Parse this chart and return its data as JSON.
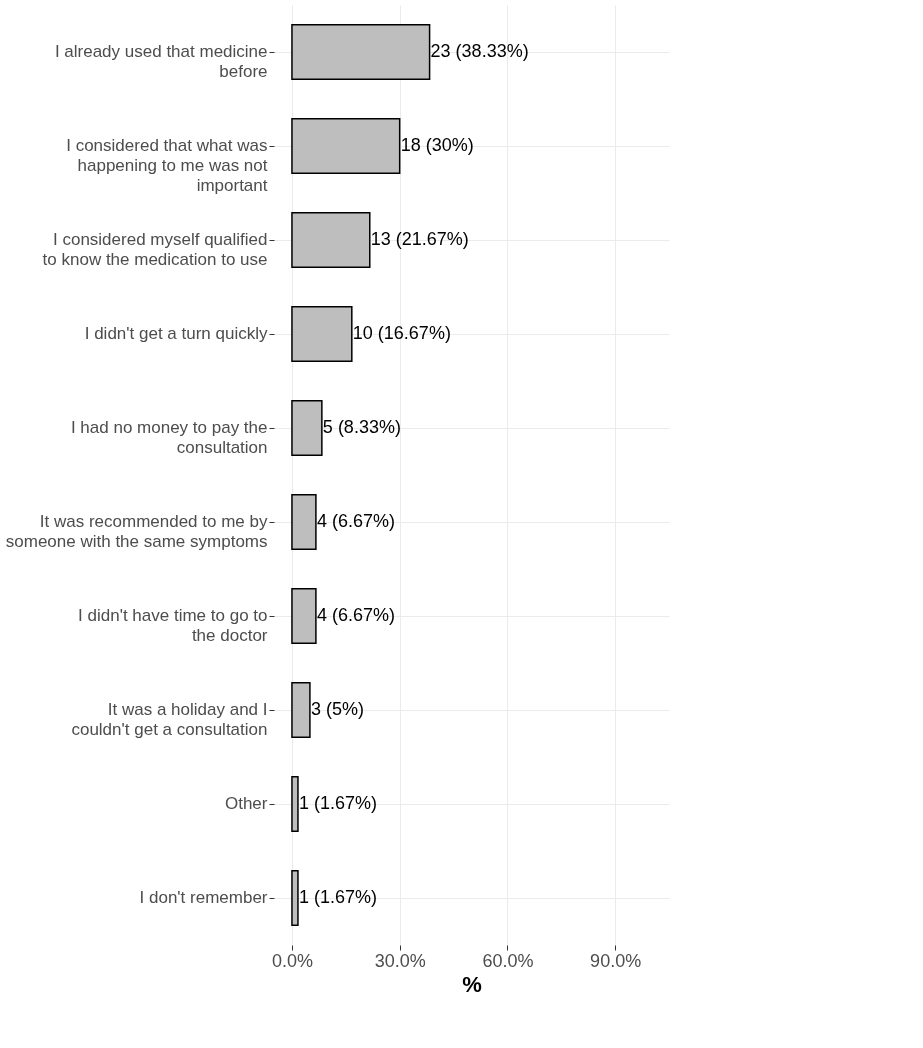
{
  "chart_data": {
    "type": "bar",
    "orientation": "horizontal",
    "xlabel": "%",
    "categories": [
      "I already used that medicine before",
      "I considered that what was happening to me was not important",
      "I considered myself qualified to know the medication to use",
      "I didn't get a turn quickly",
      "I had no money to pay the consultation",
      "It was recommended to me by someone with the same symptoms",
      "I didn't have time to go to the doctor",
      "It was a holiday and I couldn't get a consultation",
      "Other",
      "I don't remember"
    ],
    "values": [
      38.33,
      30,
      21.67,
      16.67,
      8.33,
      6.67,
      6.67,
      5,
      1.67,
      1.67
    ],
    "value_labels": [
      "23 (38.33%)",
      "18 (30%)",
      "13 (21.67%)",
      "10 (16.67%)",
      "5 (8.33%)",
      "4 (6.67%)",
      "4 (6.67%)",
      "3 (5%)",
      "1 (1.67%)",
      "1 (1.67%)"
    ],
    "color": "#bebebe",
    "xlim": [
      -5,
      105
    ],
    "xticks": [
      {
        "value": 0,
        "label": "0.0%"
      },
      {
        "value": 30,
        "label": "30.0%"
      },
      {
        "value": 60,
        "label": "60.0%"
      },
      {
        "value": 90,
        "label": "90.0%"
      }
    ],
    "grid": true
  }
}
